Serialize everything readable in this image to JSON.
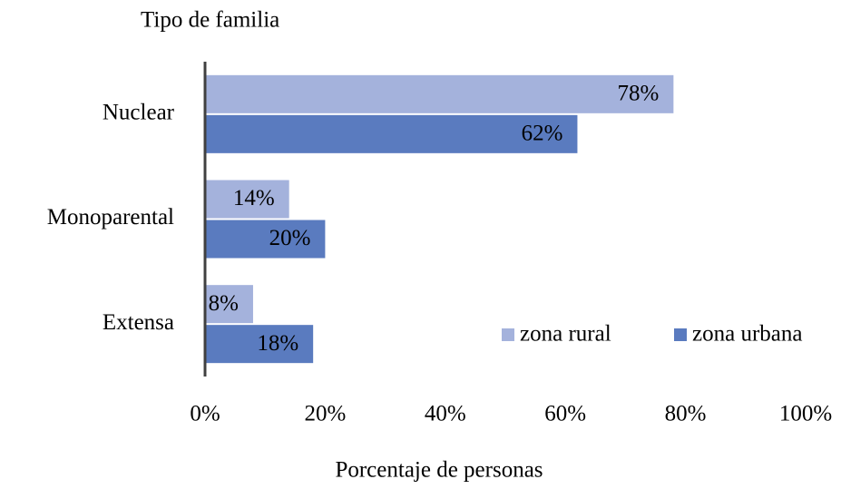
{
  "chart_data": {
    "type": "bar",
    "orientation": "horizontal",
    "title": "Tipo de familia",
    "x_label": "Porcentaje de personas",
    "categories": [
      "Nuclear",
      "Monoparental",
      "Extensa"
    ],
    "series": [
      {
        "name": "zona rural",
        "color": "#a4b2dc",
        "values": [
          78,
          14,
          8
        ],
        "value_labels": [
          "78%",
          "14%",
          "8%"
        ]
      },
      {
        "name": "zona urbana",
        "color": "#5a7bbf",
        "values": [
          62,
          20,
          18
        ],
        "value_labels": [
          "62%",
          "20%",
          "18%"
        ]
      }
    ],
    "xlim": [
      0,
      100
    ],
    "xticks": [
      {
        "value": 0,
        "label": "0%"
      },
      {
        "value": 20,
        "label": "20%"
      },
      {
        "value": 40,
        "label": "40%"
      },
      {
        "value": 60,
        "label": "60%"
      },
      {
        "value": 80,
        "label": "80%"
      },
      {
        "value": 100,
        "label": "100%"
      }
    ],
    "legend": "lower right"
  }
}
